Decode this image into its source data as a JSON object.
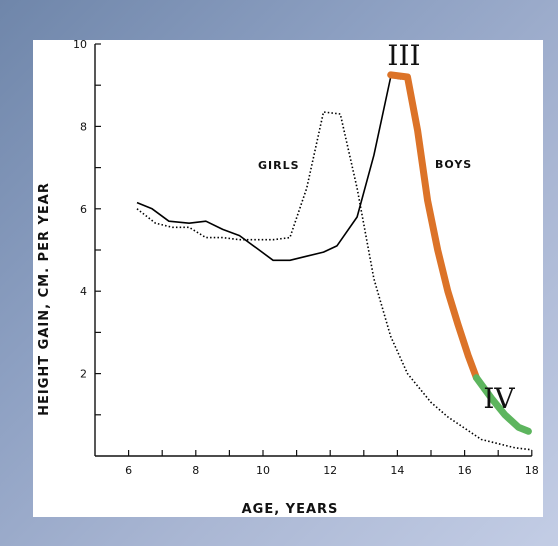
{
  "chart_data": {
    "type": "line",
    "xlabel": "AGE, YEARS",
    "ylabel": "HEIGHT GAIN,  CM. PER YEAR",
    "xlim": [
      5,
      18
    ],
    "ylim": [
      0,
      10
    ],
    "xticks": [
      6,
      8,
      10,
      12,
      14,
      16,
      18
    ],
    "yticks": [
      2,
      4,
      6,
      8,
      10
    ],
    "grid": false,
    "series": [
      {
        "name": "BOYS",
        "style": "solid",
        "color": "#000000",
        "x": [
          6.25,
          6.7,
          7.2,
          7.8,
          8.3,
          8.8,
          9.3,
          9.8,
          10.3,
          10.8,
          11.3,
          11.8,
          12.2,
          12.8,
          13.3,
          13.8,
          14.1
        ],
        "y": [
          6.15,
          6.0,
          5.7,
          5.65,
          5.7,
          5.5,
          5.35,
          5.05,
          4.75,
          4.75,
          4.85,
          4.95,
          5.1,
          5.8,
          7.3,
          9.2,
          9.15
        ]
      },
      {
        "name": "GIRLS",
        "style": "dotted",
        "color": "#000000",
        "x": [
          6.25,
          6.8,
          7.3,
          7.8,
          8.3,
          8.8,
          9.3,
          9.8,
          10.3,
          10.8,
          11.3,
          11.8,
          12.3,
          12.8,
          13.3,
          13.8,
          14.3,
          15.0,
          15.5,
          16.5,
          17.5,
          18.0
        ],
        "y": [
          6.0,
          5.65,
          5.55,
          5.55,
          5.3,
          5.3,
          5.25,
          5.25,
          5.25,
          5.3,
          6.5,
          8.35,
          8.3,
          6.5,
          4.3,
          2.9,
          2.0,
          1.3,
          0.95,
          0.4,
          0.2,
          0.15
        ]
      }
    ],
    "highlights": [
      {
        "label": "III",
        "color": "#dc7328",
        "x": [
          13.8,
          14.3,
          14.6,
          14.9,
          15.2,
          15.5,
          15.8,
          16.1,
          16.35
        ],
        "y": [
          9.25,
          9.2,
          7.9,
          6.2,
          5.0,
          4.0,
          3.2,
          2.45,
          1.9
        ]
      },
      {
        "label": "IV",
        "color": "#5db55e",
        "x": [
          16.35,
          16.8,
          17.2,
          17.6,
          17.9
        ],
        "y": [
          1.9,
          1.4,
          1.0,
          0.7,
          0.6
        ]
      }
    ]
  }
}
